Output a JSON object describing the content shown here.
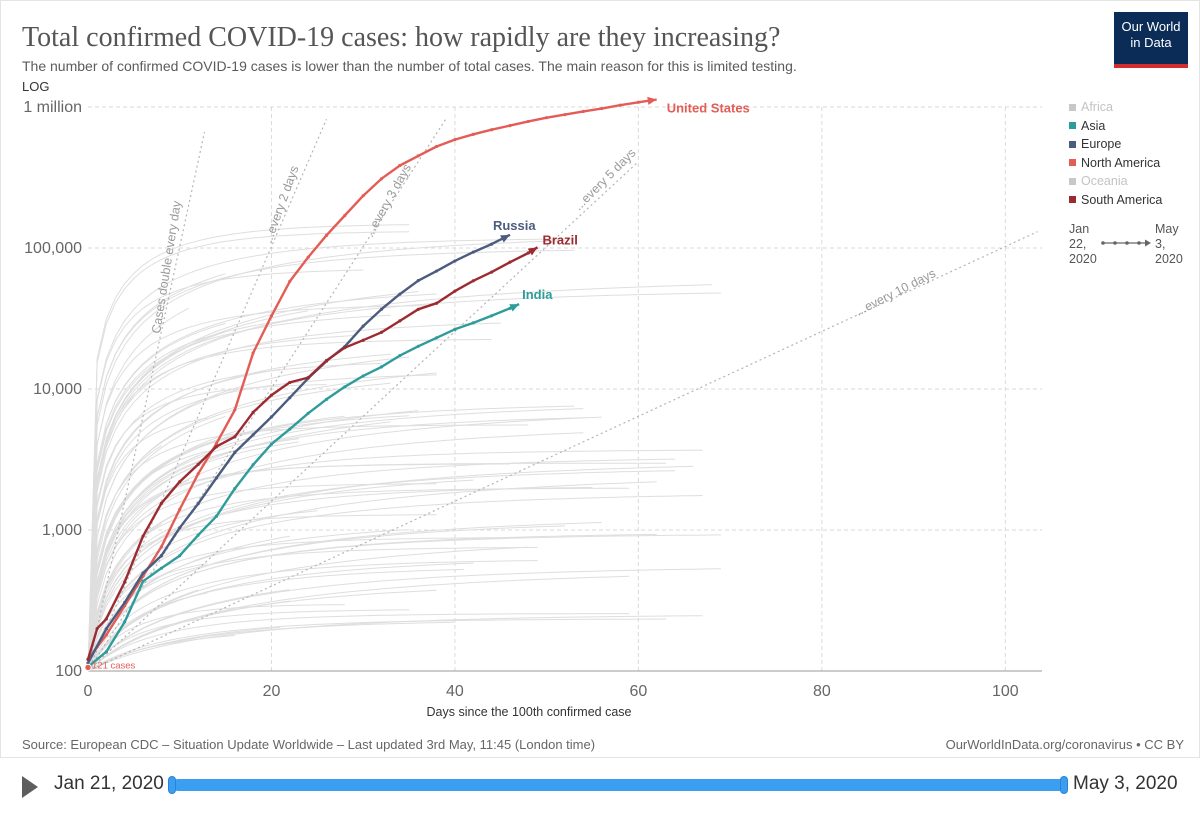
{
  "header": {
    "title": "Total confirmed COVID-19 cases: how rapidly are they increasing?",
    "subtitle": "The number of confirmed COVID-19 cases is lower than the number of total cases. The main reason for this is limited testing.",
    "logo_line1": "Our World",
    "logo_line2": "in Data"
  },
  "legend": {
    "items": [
      {
        "label": "Africa",
        "color": "#c8c8c8",
        "muted": true
      },
      {
        "label": "Asia",
        "color": "#2e9c9a",
        "muted": false
      },
      {
        "label": "Europe",
        "color": "#4c5c7e",
        "muted": false
      },
      {
        "label": "North America",
        "color": "#e35d56",
        "muted": false
      },
      {
        "label": "Oceania",
        "color": "#c8c8c8",
        "muted": true
      },
      {
        "label": "South America",
        "color": "#9c2b31",
        "muted": false
      }
    ],
    "time_start": "Jan 22, 2020",
    "time_start_lines": [
      "Jan",
      "22,",
      "2020"
    ],
    "time_end": "May 3, 2020",
    "time_end_lines": [
      "May",
      "3,",
      "2020"
    ]
  },
  "footer": {
    "source": "Source: European CDC – Situation Update Worldwide – Last updated 3rd May, 11:45 (London time)",
    "credit": "OurWorldInData.org/coronavirus • CC BY"
  },
  "timeline": {
    "start_label": "Jan 21, 2020",
    "end_label": "May 3, 2020"
  },
  "chart_data": {
    "type": "line",
    "title": "Total confirmed COVID-19 cases: how rapidly are they increasing?",
    "xlabel": "Days since the 100th confirmed case",
    "ylabel": "",
    "yscale_label": "LOG",
    "xlim": [
      0,
      104
    ],
    "ylim": [
      100,
      1000000
    ],
    "yscale": "log",
    "x_ticks": [
      0,
      20,
      40,
      60,
      80,
      100
    ],
    "y_ticks": [
      100,
      1000,
      10000,
      100000,
      1000000
    ],
    "y_tick_labels": [
      "100",
      "1,000",
      "10,000",
      "100,000",
      "1 million"
    ],
    "grid": true,
    "start_annotation": "121 cases",
    "doubling_guides": [
      {
        "label": "Cases double every day",
        "days": 1,
        "x_end": 12.7
      },
      {
        "label": "...every 2 days",
        "days": 2,
        "x_end": 26
      },
      {
        "label": "...every 3 days",
        "days": 3,
        "x_end": 39
      },
      {
        "label": "...every 5 days",
        "days": 5,
        "x_end": 60
      },
      {
        "label": "...every 10 days",
        "days": 10,
        "x_end": 103.5
      }
    ],
    "series": [
      {
        "name": "United States",
        "region": "North America",
        "color": "#e35d56",
        "x": [
          0,
          2,
          4,
          6,
          8,
          10,
          12,
          14,
          16,
          18,
          20,
          22,
          24,
          26,
          28,
          30,
          32,
          34,
          36,
          38,
          40,
          42,
          44,
          46,
          48,
          50,
          52,
          54,
          56,
          58,
          60,
          62
        ],
        "y": [
          121,
          180,
          290,
          470,
          760,
          1400,
          2500,
          4100,
          7100,
          18000,
          33000,
          58000,
          86000,
          123000,
          170000,
          235000,
          310000,
          385000,
          450000,
          525000,
          587000,
          640000,
          690000,
          738000,
          790000,
          840000,
          883000,
          930000,
          975000,
          1030000,
          1080000,
          1130000
        ]
      },
      {
        "name": "Russia",
        "region": "Europe",
        "color": "#4c5c7e",
        "x": [
          0,
          2,
          4,
          6,
          8,
          10,
          12,
          14,
          16,
          18,
          20,
          22,
          24,
          26,
          28,
          30,
          32,
          34,
          36,
          38,
          40,
          42,
          44,
          46
        ],
        "y": [
          114,
          199,
          306,
          495,
          658,
          1036,
          1534,
          2337,
          3548,
          4731,
          6343,
          8672,
          11917,
          15770,
          20000,
          27938,
          36793,
          47121,
          58671,
          68622,
          80949,
          93558,
          106498,
          124054
        ]
      },
      {
        "name": "Brazil",
        "region": "South America",
        "color": "#9c2b31",
        "x": [
          0,
          1,
          2,
          4,
          6,
          8,
          10,
          12,
          14,
          16,
          18,
          20,
          22,
          24,
          26,
          28,
          30,
          32,
          34,
          36,
          38,
          40,
          42,
          44,
          46,
          48,
          49
        ],
        "y": [
          121,
          200,
          234,
          428,
          904,
          1546,
          2201,
          2915,
          3904,
          4579,
          6836,
          9056,
          11130,
          12056,
          15927,
          19638,
          22169,
          25262,
          30425,
          36722,
          40581,
          49492,
          58509,
          67446,
          79361,
          92202,
          101147
        ]
      },
      {
        "name": "India",
        "region": "Asia",
        "color": "#2e9c9a",
        "x": [
          0,
          2,
          4,
          6,
          8,
          10,
          12,
          14,
          16,
          18,
          20,
          22,
          24,
          26,
          28,
          30,
          32,
          34,
          36,
          38,
          40,
          42,
          44,
          46,
          47
        ],
        "y": [
          107,
          137,
          223,
          433,
          536,
          657,
          918,
          1251,
          1965,
          2902,
          4067,
          5194,
          6725,
          8446,
          10363,
          12380,
          14352,
          17265,
          20080,
          23077,
          26496,
          29435,
          33050,
          37336,
          39980
        ]
      }
    ],
    "background_series_count": 96
  }
}
